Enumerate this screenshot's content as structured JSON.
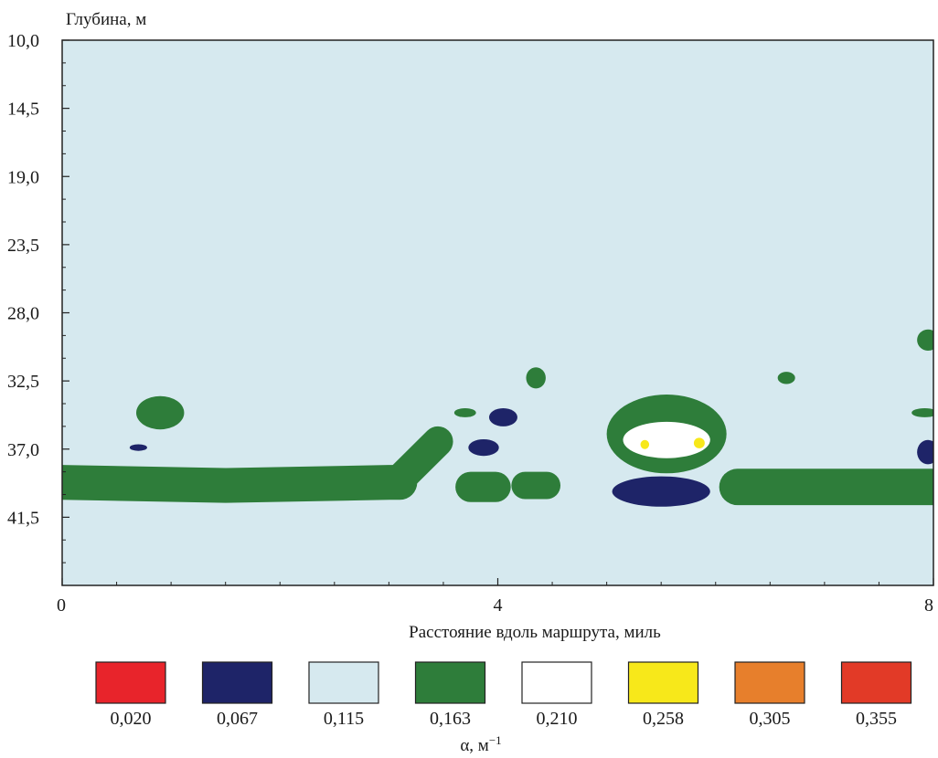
{
  "chart_data": {
    "type": "heatmap",
    "title": "",
    "ylabel": "Глубина, м",
    "xlabel": "Расстояние вдоль маршрута, миль",
    "colorbar_label_base": "α, м",
    "colorbar_label_exp": "−1",
    "y_ticks": [
      "10,0",
      "14,5",
      "19,0",
      "23,5",
      "28,0",
      "32,5",
      "37,0",
      "41,5"
    ],
    "y_tick_values": [
      10.0,
      14.5,
      19.0,
      23.5,
      28.0,
      32.5,
      37.0,
      41.5
    ],
    "x_ticks": [
      "0",
      "4",
      "8"
    ],
    "x_tick_values": [
      0,
      4,
      8
    ],
    "xlim": [
      0,
      8
    ],
    "ylim": [
      10.0,
      46.0
    ],
    "y_inverted": true,
    "background_level": "0,115",
    "legend": [
      {
        "label": "0,020",
        "color": "#e8242b"
      },
      {
        "label": "0,067",
        "color": "#1e2468"
      },
      {
        "label": "0,115",
        "color": "#d6e9ef"
      },
      {
        "label": "0,163",
        "color": "#2e7d3a"
      },
      {
        "label": "0,210",
        "color": "#ffffff"
      },
      {
        "label": "0,258",
        "color": "#f7e81a"
      },
      {
        "label": "0,305",
        "color": "#e77f2c"
      },
      {
        "label": "0,355",
        "color": "#e23a27"
      }
    ],
    "regions": [
      {
        "level": "0,163",
        "x": [
          0.0,
          1.5,
          3.0,
          3.1
        ],
        "y": [
          39.2,
          39.4,
          39.2,
          39.2
        ],
        "kind": "band",
        "thickness": 2.3
      },
      {
        "level": "0,163",
        "x": [
          3.1,
          3.45
        ],
        "y": [
          39.0,
          36.5
        ],
        "kind": "band",
        "thickness": 2.0
      },
      {
        "level": "0,163",
        "x": [
          3.75,
          3.98
        ],
        "y": [
          39.5,
          39.5
        ],
        "kind": "band",
        "thickness": 2.0
      },
      {
        "level": "0,163",
        "x": [
          4.25,
          4.45
        ],
        "y": [
          39.4,
          39.4
        ],
        "kind": "band",
        "thickness": 1.8
      },
      {
        "level": "0,163",
        "x": [
          6.2,
          8.0
        ],
        "y": [
          39.5,
          39.5
        ],
        "kind": "band",
        "thickness": 2.4
      },
      {
        "level": "0,163",
        "cx": 0.9,
        "cy": 34.6,
        "rx": 0.22,
        "ry": 1.1
      },
      {
        "level": "0,163",
        "cx": 4.35,
        "cy": 32.3,
        "rx": 0.09,
        "ry": 0.7
      },
      {
        "level": "0,163",
        "cx": 3.7,
        "cy": 34.6,
        "rx": 0.1,
        "ry": 0.3
      },
      {
        "level": "0,163",
        "cx": 6.65,
        "cy": 32.3,
        "rx": 0.08,
        "ry": 0.4
      },
      {
        "level": "0,163",
        "cx": 7.95,
        "cy": 29.8,
        "rx": 0.1,
        "ry": 0.7
      },
      {
        "level": "0,163",
        "cx": 7.92,
        "cy": 34.6,
        "rx": 0.12,
        "ry": 0.3
      },
      {
        "level": "0,163",
        "cx": 5.55,
        "cy": 36.0,
        "rx": 0.55,
        "ry": 2.6
      },
      {
        "level": "0,210",
        "cx": 5.55,
        "cy": 36.4,
        "rx": 0.4,
        "ry": 1.2
      },
      {
        "level": "0,258",
        "cx": 5.35,
        "cy": 36.7,
        "rx": 0.04,
        "ry": 0.3
      },
      {
        "level": "0,258",
        "cx": 5.85,
        "cy": 36.6,
        "rx": 0.05,
        "ry": 0.35
      },
      {
        "level": "0,067",
        "cx": 5.5,
        "cy": 39.8,
        "rx": 0.45,
        "ry": 1.0
      },
      {
        "level": "0,067",
        "cx": 4.05,
        "cy": 34.9,
        "rx": 0.13,
        "ry": 0.6
      },
      {
        "level": "0,067",
        "cx": 3.87,
        "cy": 36.9,
        "rx": 0.14,
        "ry": 0.55
      },
      {
        "level": "0,067",
        "cx": 0.7,
        "cy": 36.9,
        "rx": 0.08,
        "ry": 0.22
      },
      {
        "level": "0,067",
        "cx": 7.95,
        "cy": 37.2,
        "rx": 0.1,
        "ry": 0.8
      }
    ]
  }
}
